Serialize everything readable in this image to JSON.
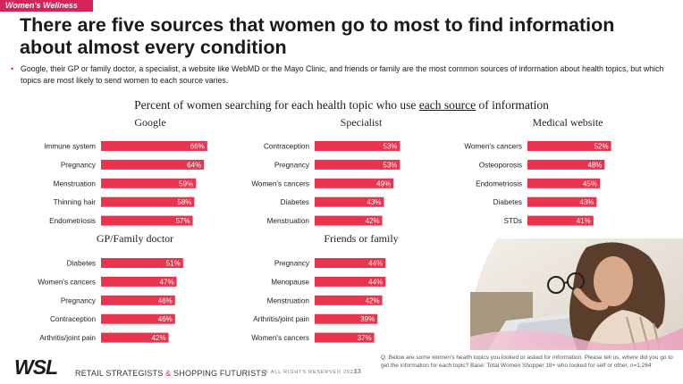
{
  "header": {
    "tag": "Women's Wellness",
    "title": "There are five sources that women go to most to find information about almost every condition",
    "bullet": "Google, their GP or family doctor, a specialist, a website like WebMD or the Mayo Clinic, and friends or family are the most common sources of information about health topics, but which topics are most likely to send women to each source varies."
  },
  "chart_title": {
    "before": "Percent of women searching for each health topic who use ",
    "underlined": "each source",
    "after": " of information"
  },
  "chart_data": [
    {
      "type": "bar",
      "title": "Google",
      "categories": [
        "Immune system",
        "Pregnancy",
        "Menstruation",
        "Thinning hair",
        "Endometriosis"
      ],
      "values": [
        66,
        64,
        59,
        58,
        57
      ],
      "labels": [
        "66%",
        "64%",
        "59%",
        "58%",
        "57%"
      ],
      "color": "#e8344f"
    },
    {
      "type": "bar",
      "title": "Specialist",
      "categories": [
        "Contraception",
        "Pregnancy",
        "Women's cancers",
        "Diabetes",
        "Menstruation"
      ],
      "values": [
        53,
        53,
        49,
        43,
        42
      ],
      "labels": [
        "53%",
        "53%",
        "49%",
        "43%",
        "42%"
      ],
      "color": "#e8344f"
    },
    {
      "type": "bar",
      "title": "Medical website",
      "categories": [
        "Women's cancers",
        "Osteoporosis",
        "Endometriosis",
        "Diabetes",
        "STDs"
      ],
      "values": [
        52,
        48,
        45,
        43,
        41
      ],
      "labels": [
        "52%",
        "48%",
        "45%",
        "43%",
        "41%"
      ],
      "color": "#e8344f"
    },
    {
      "type": "bar",
      "title": "GP/Family doctor",
      "categories": [
        "Diabetes",
        "Women's cancers",
        "Pregnancy",
        "Contraception",
        "Arthritis/joint pain"
      ],
      "values": [
        51,
        47,
        46,
        46,
        42
      ],
      "labels": [
        "51%",
        "47%",
        "46%",
        "46%",
        "42%"
      ],
      "color": "#e8344f"
    },
    {
      "type": "bar",
      "title": "Friends or family",
      "categories": [
        "Pregnancy",
        "Menopause",
        "Menstruation",
        "Arthritis/joint pain",
        "Women's cancers"
      ],
      "values": [
        44,
        44,
        42,
        39,
        37
      ],
      "labels": [
        "44%",
        "44%",
        "42%",
        "39%",
        "37%"
      ],
      "color": "#e8344f"
    }
  ],
  "footer": {
    "logo": "WSL",
    "tagline_a": "RETAIL STRATEGISTS ",
    "tagline_amp": "&",
    "tagline_b": " SHOPPING FUTURISTS",
    "rights": "© ALL RIGHTS RESERVED 2023",
    "page": "13",
    "note": "Q. Below are some women's health topics you looked or asked for information. Please tell us, where did you go to get the information for each topic? Base: Total Women Shopper 18+ who looked for self or other, n=1,264"
  }
}
